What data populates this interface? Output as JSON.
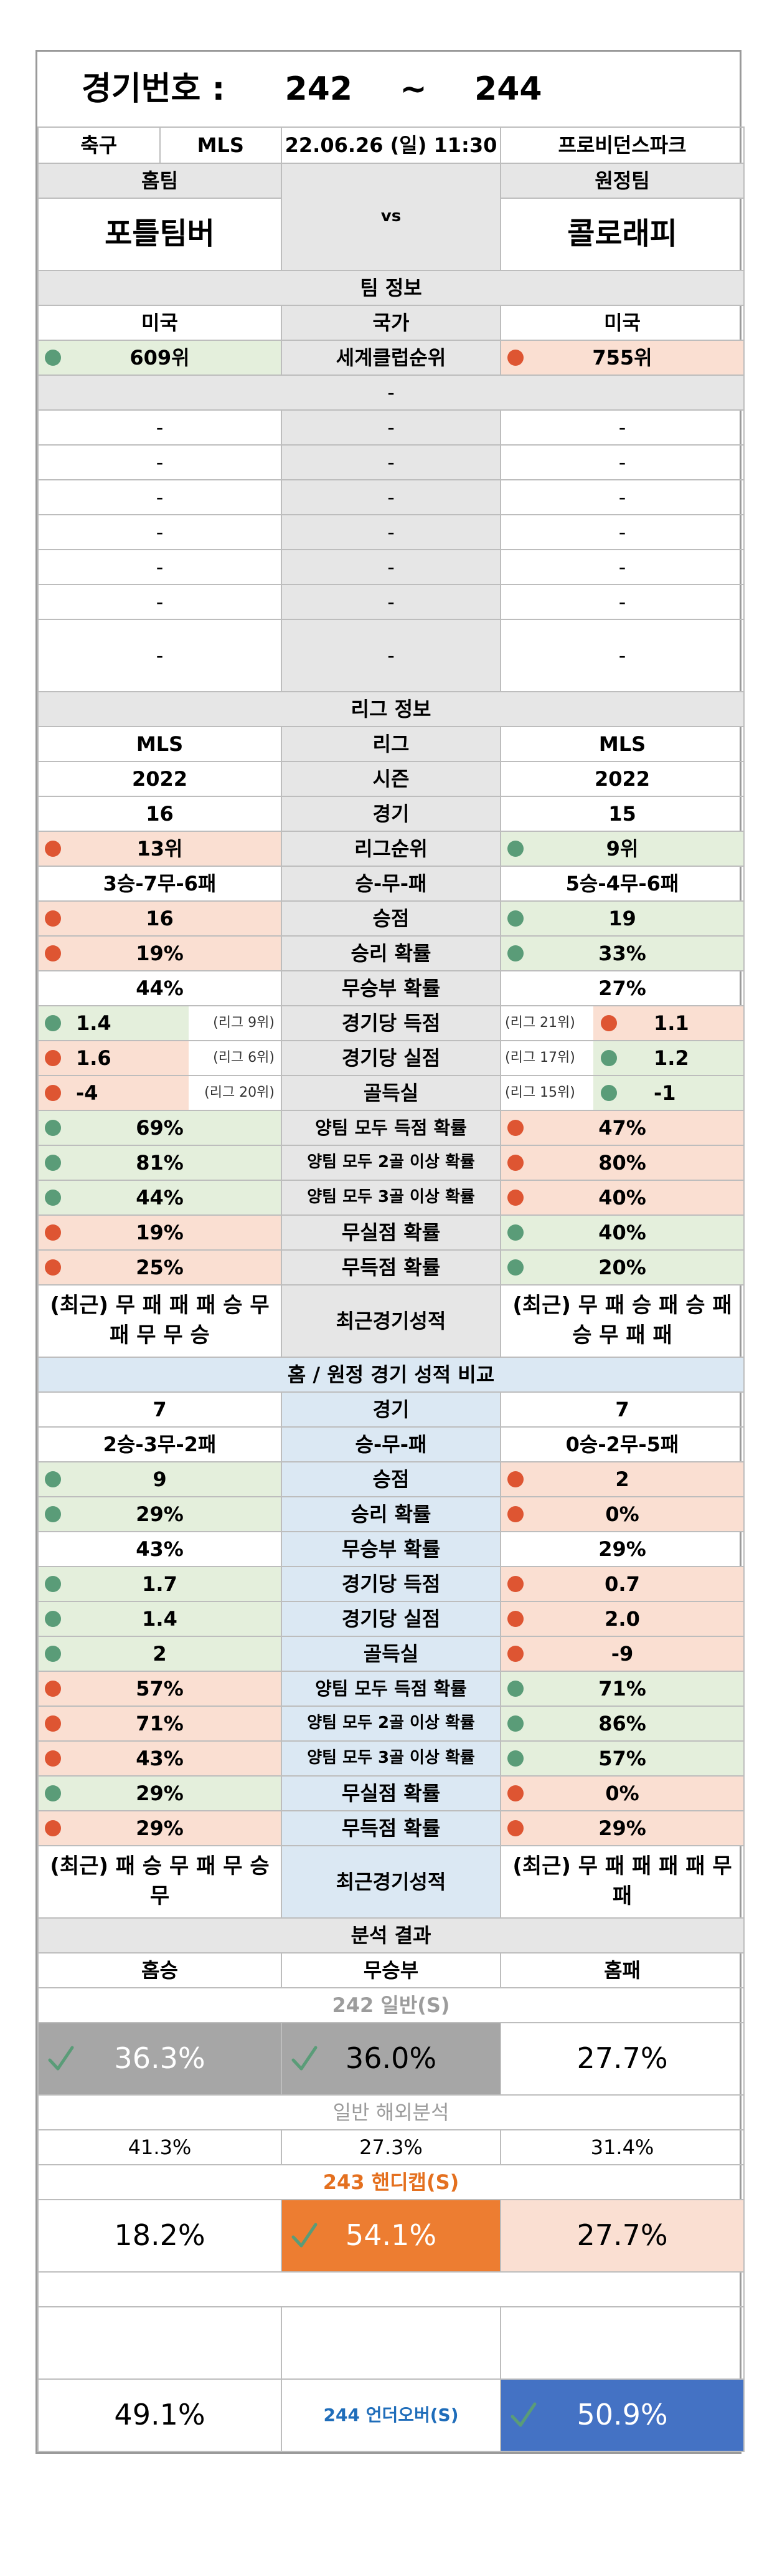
{
  "header": {
    "label": "경기번호 :",
    "num_start": "242",
    "tilde": "~",
    "num_end": "244"
  },
  "match": {
    "sport": "축구",
    "league": "MLS",
    "datetime": "22.06.26 (일) 11:30",
    "venue": "프로비던스파크"
  },
  "teams": {
    "home_label": "홈팀",
    "away_label": "원정팀",
    "home": "포틀팀버",
    "away": "콜로래피",
    "vs": "vs"
  },
  "team_info": {
    "title": "팀 정보",
    "country": {
      "label": "국가",
      "home": "미국",
      "away": "미국"
    },
    "rank": {
      "label": "세계클럽순위",
      "home": "609위",
      "away": "755위"
    },
    "sep": "-",
    "blank": "-"
  },
  "league_info": {
    "title": "리그 정보",
    "rows": {
      "league": {
        "label": "리그",
        "home": "MLS",
        "away": "MLS"
      },
      "season": {
        "label": "시즌",
        "home": "2022",
        "away": "2022"
      },
      "games": {
        "label": "경기",
        "home": "16",
        "away": "15"
      },
      "rank": {
        "label": "리그순위",
        "home": "13위",
        "away": "9위"
      },
      "wdl": {
        "label": "승-무-패",
        "home": "3승-7무-6패",
        "away": "5승-4무-6패"
      },
      "points": {
        "label": "승점",
        "home": "16",
        "away": "19"
      },
      "winp": {
        "label": "승리 확률",
        "home": "19%",
        "away": "33%"
      },
      "drawp": {
        "label": "무승부 확률",
        "home": "44%",
        "away": "27%"
      },
      "gf": {
        "label": "경기당 득점",
        "home": "1.4",
        "home_sub": "(리그 9위)",
        "away": "1.1",
        "away_sub": "(리그 21위)"
      },
      "ga": {
        "label": "경기당 실점",
        "home": "1.6",
        "home_sub": "(리그 6위)",
        "away": "1.2",
        "away_sub": "(리그 17위)"
      },
      "gd": {
        "label": "골득실",
        "home": "-4",
        "home_sub": "(리그 20위)",
        "away": "-1",
        "away_sub": "(리그 15위)"
      },
      "btts": {
        "label": "양팀 모두 득점 확률",
        "home": "69%",
        "away": "47%"
      },
      "btts2": {
        "label": "양팀 모두 2골 이상 확률",
        "home": "81%",
        "away": "80%"
      },
      "btts3": {
        "label": "양팀 모두 3골 이상 확률",
        "home": "44%",
        "away": "40%"
      },
      "cs": {
        "label": "무실점 확률",
        "home": "19%",
        "away": "40%"
      },
      "fts": {
        "label": "무득점 확률",
        "home": "25%",
        "away": "20%"
      },
      "recent": {
        "label": "최근경기성적",
        "home": "(최근) 무 패 패 패 승 무 패 무 무 승",
        "away": "(최근) 무 패 승 패 승 패 승 무 패 패"
      }
    }
  },
  "homeaway": {
    "title": "홈 / 원정 경기 성적 비교",
    "rows": {
      "games": {
        "label": "경기",
        "home": "7",
        "away": "7"
      },
      "wdl": {
        "label": "승-무-패",
        "home": "2승-3무-2패",
        "away": "0승-2무-5패"
      },
      "points": {
        "label": "승점",
        "home": "9",
        "away": "2"
      },
      "winp": {
        "label": "승리 확률",
        "home": "29%",
        "away": "0%"
      },
      "drawp": {
        "label": "무승부 확률",
        "home": "43%",
        "away": "29%"
      },
      "gf": {
        "label": "경기당 득점",
        "home": "1.7",
        "away": "0.7"
      },
      "ga": {
        "label": "경기당 실점",
        "home": "1.4",
        "away": "2.0"
      },
      "gd": {
        "label": "골득실",
        "home": "2",
        "away": "-9"
      },
      "btts": {
        "label": "양팀 모두 득점 확률",
        "home": "57%",
        "away": "71%"
      },
      "btts2": {
        "label": "양팀 모두 2골 이상 확률",
        "home": "71%",
        "away": "86%"
      },
      "btts3": {
        "label": "양팀 모두 3골 이상 확률",
        "home": "43%",
        "away": "57%"
      },
      "cs": {
        "label": "무실점 확률",
        "home": "29%",
        "away": "0%"
      },
      "fts": {
        "label": "무득점 확률",
        "home": "29%",
        "away": "29%"
      },
      "recent": {
        "label": "최근경기성적",
        "home": "(최근) 패 승 무 패 무 승 무",
        "away": "(최근) 무 패 패 패 패 무 패"
      }
    }
  },
  "analysis": {
    "title": "분석 결과",
    "cols": {
      "home": "홈승",
      "draw": "무승부",
      "away": "홈패"
    },
    "g242": {
      "title": "242 일반(S)",
      "home": "36.3%",
      "draw": "36.0%",
      "away": "27.7%"
    },
    "overseas": {
      "title": "일반 해외분석",
      "home": "41.3%",
      "draw": "27.3%",
      "away": "31.4%"
    },
    "g243": {
      "title": "243 핸디캡(S)",
      "home": "18.2%",
      "draw": "54.1%",
      "away": "27.7%"
    },
    "g244": {
      "label": "244 언더오버(S)",
      "under": "49.1%",
      "over": "50.9%"
    }
  },
  "colors": {
    "green": "#5a9c78",
    "red": "#de5532",
    "orange": "#ed7d31",
    "blue": "#4472c4",
    "grey": "#a6a6a6"
  }
}
